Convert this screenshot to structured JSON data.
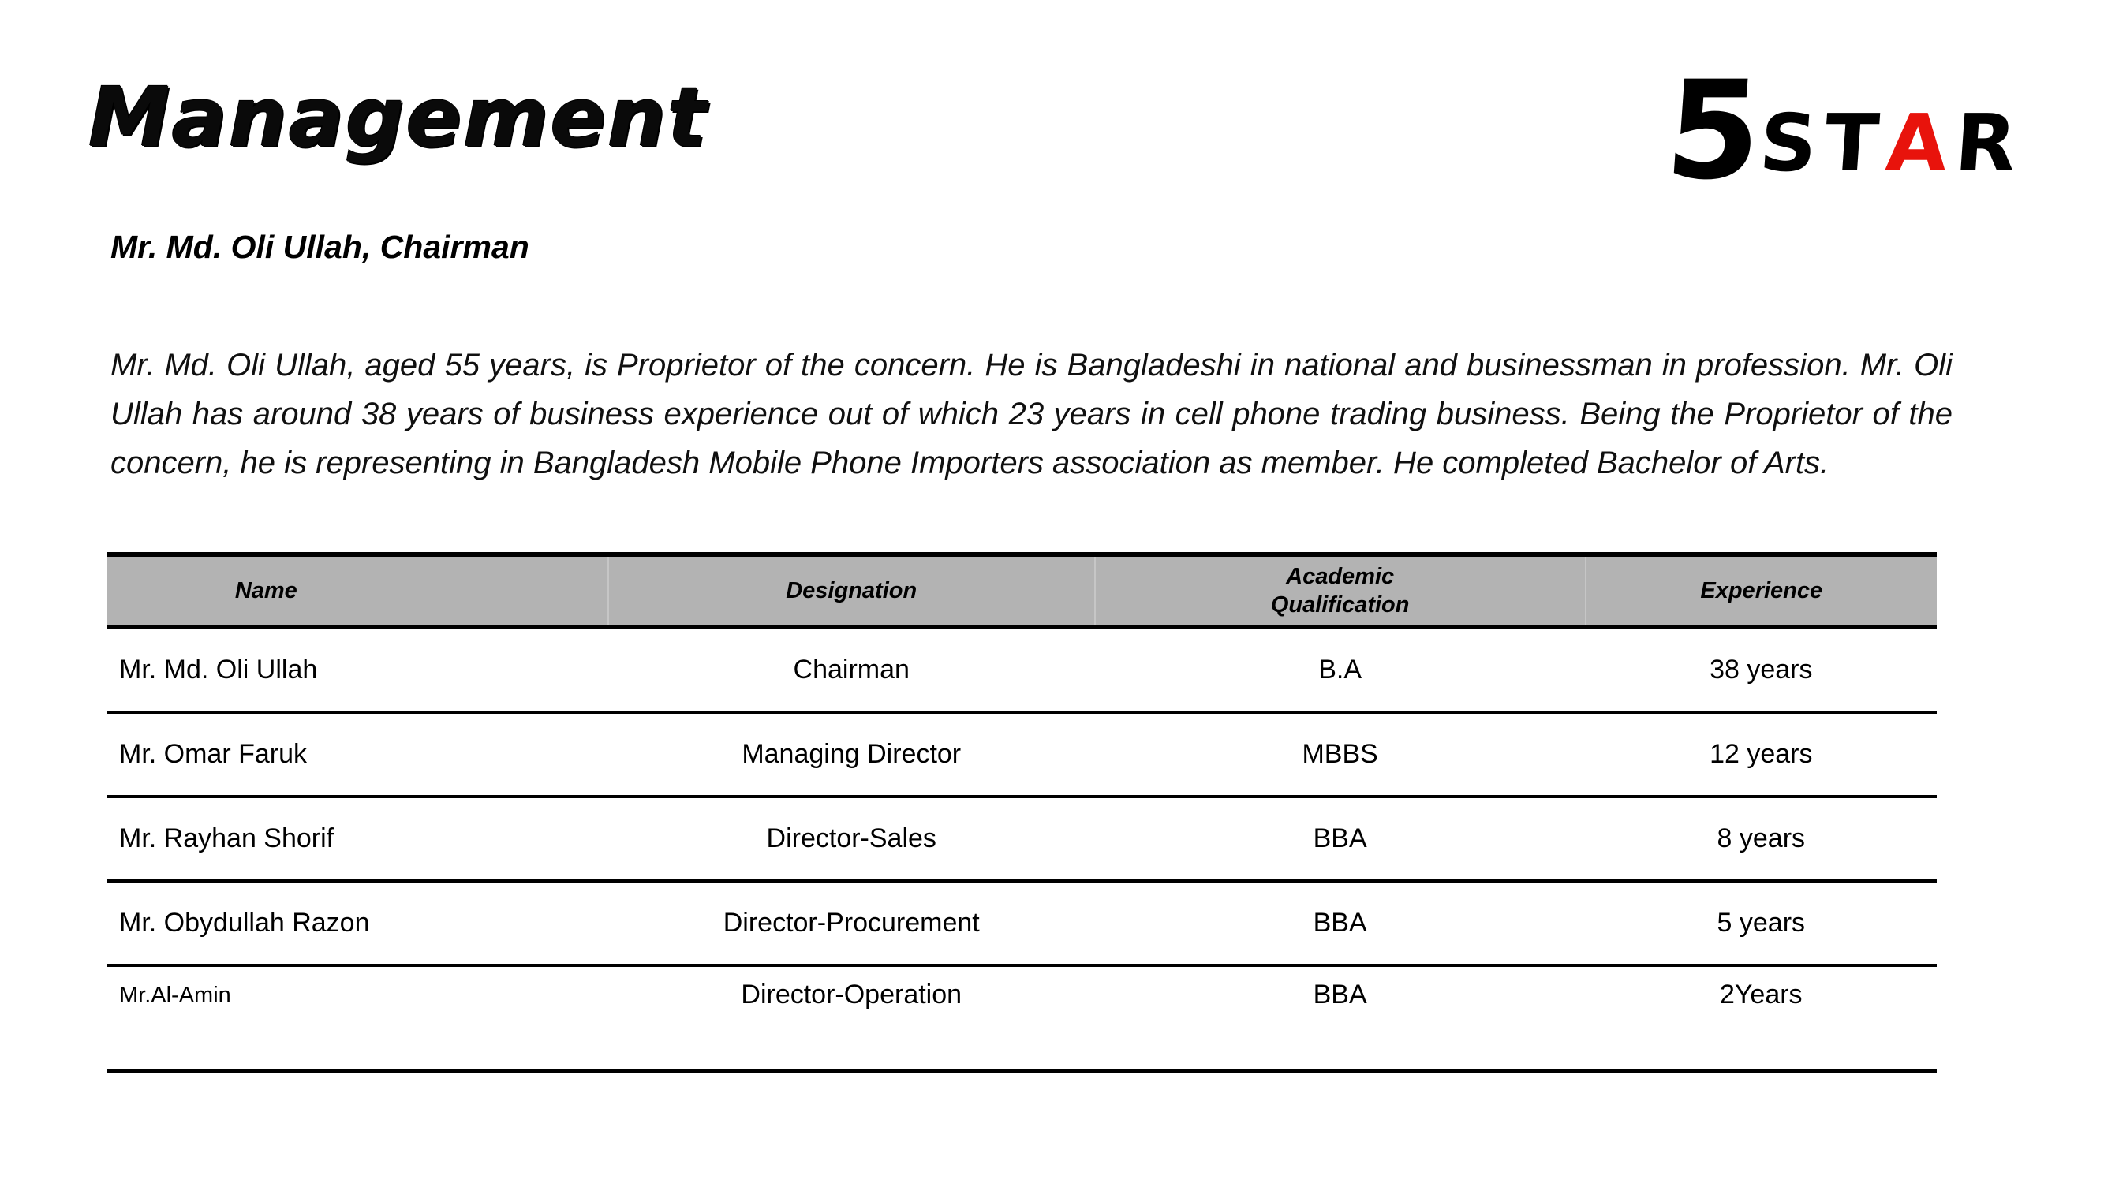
{
  "page": {
    "title": "Management",
    "subtitle": "Mr. Md. Oli Ullah, Chairman",
    "paragraph": "Mr. Md. Oli Ullah, aged 55 years, is Proprietor of the concern. He is Bangladeshi in national and businessman in profession. Mr. Oli Ullah has around 38 years of business experience out of which 23 years in cell phone trading business. Being the Proprietor of the concern, he is representing in Bangladesh Mobile Phone Importers association as member. He completed Bachelor of Arts."
  },
  "logo": {
    "five": "5",
    "black_part_1": "ST",
    "red_part": "A",
    "black_part_2": "R",
    "red_color": "#e8130c",
    "black_color": "#000000"
  },
  "table": {
    "header_bg": "#b3b3b3",
    "columns": [
      "Name",
      "Designation",
      "Academic Qualification",
      "Experience"
    ],
    "rows": [
      {
        "name": "Mr. Md. Oli Ullah",
        "designation": "Chairman",
        "qualification": "B.A",
        "experience": "38 years"
      },
      {
        "name": "Mr. Omar Faruk",
        "designation": "Managing Director",
        "qualification": "MBBS",
        "experience": "12 years"
      },
      {
        "name": "Mr. Rayhan Shorif",
        "designation": "Director-Sales",
        "qualification": "BBA",
        "experience": "8 years"
      },
      {
        "name": "Mr. Obydullah Razon",
        "designation": "Director-Procurement",
        "qualification": "BBA",
        "experience": "5 years"
      },
      {
        "name": "Mr.Al-Amin",
        "designation": "Director-Operation",
        "qualification": "BBA",
        "experience": "2Years"
      }
    ]
  }
}
